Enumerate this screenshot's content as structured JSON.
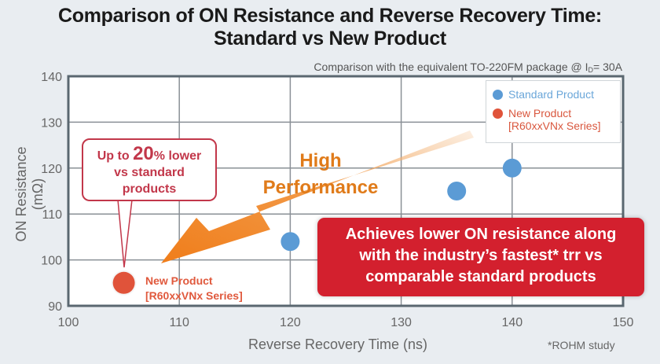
{
  "title_line1": "Comparison of ON Resistance and Reverse Recovery Time:",
  "title_line2": "Standard vs New Product",
  "subtitle_prefix": "Comparison with the equivalent TO-220FM package @ I",
  "subtitle_sub": "D",
  "subtitle_suffix": "= 30A",
  "footnote": "*ROHM study",
  "callout": {
    "part1": "Up to ",
    "big": "20",
    "part2": "% lower",
    "line2": "vs standard",
    "line3": "products"
  },
  "arrow_text": {
    "line1": "High",
    "line2": "Performance"
  },
  "banner": {
    "line1": "Achieves lower ON resistance along",
    "line2": "with the industry’s fastest* trr vs",
    "line3": "comparable standard products"
  },
  "point_label": {
    "line1": "New Product",
    "line2": "[R60xxVNx Series]"
  },
  "colors": {
    "standard": "#5b9bd5",
    "new": "#e0533a",
    "banner": "#d3202e",
    "arrow": "#f07d1a"
  },
  "chart_data": {
    "type": "scatter",
    "title": "Comparison of ON Resistance and Reverse Recovery Time: Standard vs New Product",
    "xlabel": "Reverse Recovery Time (ns)",
    "ylabel": "ON Resistance (mΩ)",
    "xlim": [
      100,
      150
    ],
    "ylim": [
      90,
      140
    ],
    "xticks": [
      "100",
      "110",
      "120",
      "130",
      "140",
      "150"
    ],
    "yticks": [
      "90",
      "100",
      "110",
      "120",
      "130",
      "140"
    ],
    "grid": true,
    "legend_position": "top-right",
    "legend": {
      "standard": "Standard Product",
      "new_line1": "New Product",
      "new_line2": "[R60xxVNx Series]"
    },
    "series": [
      {
        "name": "Standard Product",
        "points": [
          {
            "x": 120,
            "y": 104
          },
          {
            "x": 135,
            "y": 115
          },
          {
            "x": 140,
            "y": 120
          }
        ]
      },
      {
        "name": "New Product [R60xxVNx Series]",
        "points": [
          {
            "x": 105,
            "y": 95
          }
        ]
      }
    ]
  }
}
